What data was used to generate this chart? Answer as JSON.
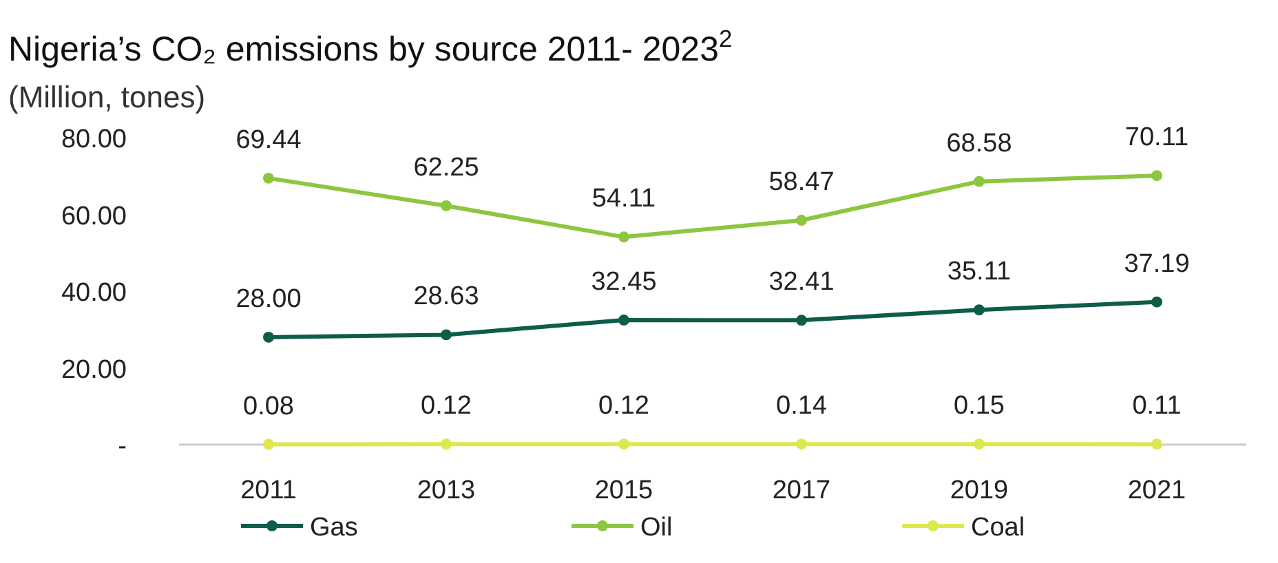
{
  "chart_data": {
    "type": "line",
    "title": "Nigeria’s CO₂ emissions by source 2011- 2023$^{2}$",
    "subtitle": "(Million, tones)",
    "categories": [
      "2011",
      "2013",
      "2015",
      "2017",
      "2019",
      "2021"
    ],
    "series": [
      {
        "name": "Gas",
        "color": "#0e5c4a",
        "values": [
          28.0,
          28.63,
          32.45,
          32.41,
          35.11,
          37.19
        ],
        "value_labels": [
          "28.00",
          "28.63",
          "32.45",
          "32.41",
          "35.11",
          "37.19"
        ]
      },
      {
        "name": "Oil",
        "color": "#8dc63f",
        "values": [
          69.44,
          62.25,
          54.11,
          58.47,
          68.58,
          70.11
        ],
        "value_labels": [
          "69.44",
          "62.25",
          "54.11",
          "58.47",
          "68.58",
          "70.11"
        ]
      },
      {
        "name": "Coal",
        "color": "#dce84e",
        "values": [
          0.08,
          0.12,
          0.12,
          0.14,
          0.15,
          0.11
        ],
        "value_labels": [
          "0.08",
          "0.12",
          "0.12",
          "0.14",
          "0.15",
          "0.11"
        ]
      }
    ],
    "ylim": [
      0,
      80
    ],
    "yticks": [
      {
        "value": 0,
        "label": "-"
      },
      {
        "value": 20,
        "label": "20.00"
      },
      {
        "value": 40,
        "label": "40.00"
      },
      {
        "value": 60,
        "label": "60.00"
      },
      {
        "value": 80,
        "label": "80.00"
      }
    ],
    "grid": false,
    "legend": "bottom",
    "marker": "circle",
    "line_style": "solid"
  }
}
